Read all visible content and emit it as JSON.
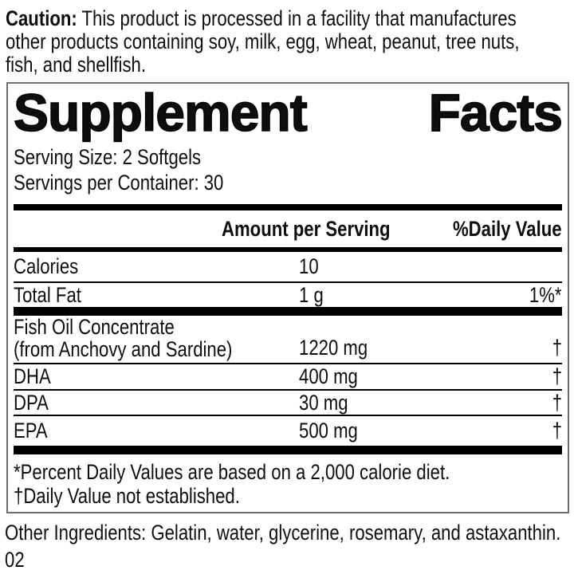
{
  "caution": {
    "label": "Caution:",
    "lines": [
      "This product is processed in a facility that manufactures",
      "other products containing soy, milk, egg, wheat, peanut, tree nuts,",
      "fish, and shellfish."
    ]
  },
  "panel": {
    "title_word_left": "Supplement",
    "title_word_right": "Facts",
    "serving_size": "Serving Size: 2 Softgels",
    "servings_per_container": "Servings per Container: 30",
    "columns": {
      "amount_header": "Amount per Serving",
      "daily_value_header": "%Daily Value"
    },
    "rows": [
      {
        "name": "Calories",
        "amount": "10",
        "daily_value": ""
      },
      {
        "name": "Total Fat",
        "amount": "1 g",
        "daily_value": "1%*"
      },
      {
        "name": "Fish Oil Concentrate",
        "name_line2": "(from Anchovy and Sardine)",
        "amount": "1220 mg",
        "daily_value": "†"
      },
      {
        "name": "DHA",
        "amount": "400 mg",
        "daily_value": "†"
      },
      {
        "name": "DPA",
        "amount": "30 mg",
        "daily_value": "†"
      },
      {
        "name": "EPA",
        "amount": "500 mg",
        "daily_value": "†"
      }
    ],
    "footnotes": [
      "*Percent Daily Values are based on a 2,000 calorie diet.",
      "†Daily Value not established."
    ]
  },
  "other_ingredients": "Other Ingredients: Gelatin, water, glycerine, rosemary, and astaxanthin.",
  "batch_code": "02",
  "colors": {
    "text": "#0e0e0e",
    "bars": "#000000",
    "panel_border": "#6e6e6e",
    "background": "#ffffff"
  }
}
